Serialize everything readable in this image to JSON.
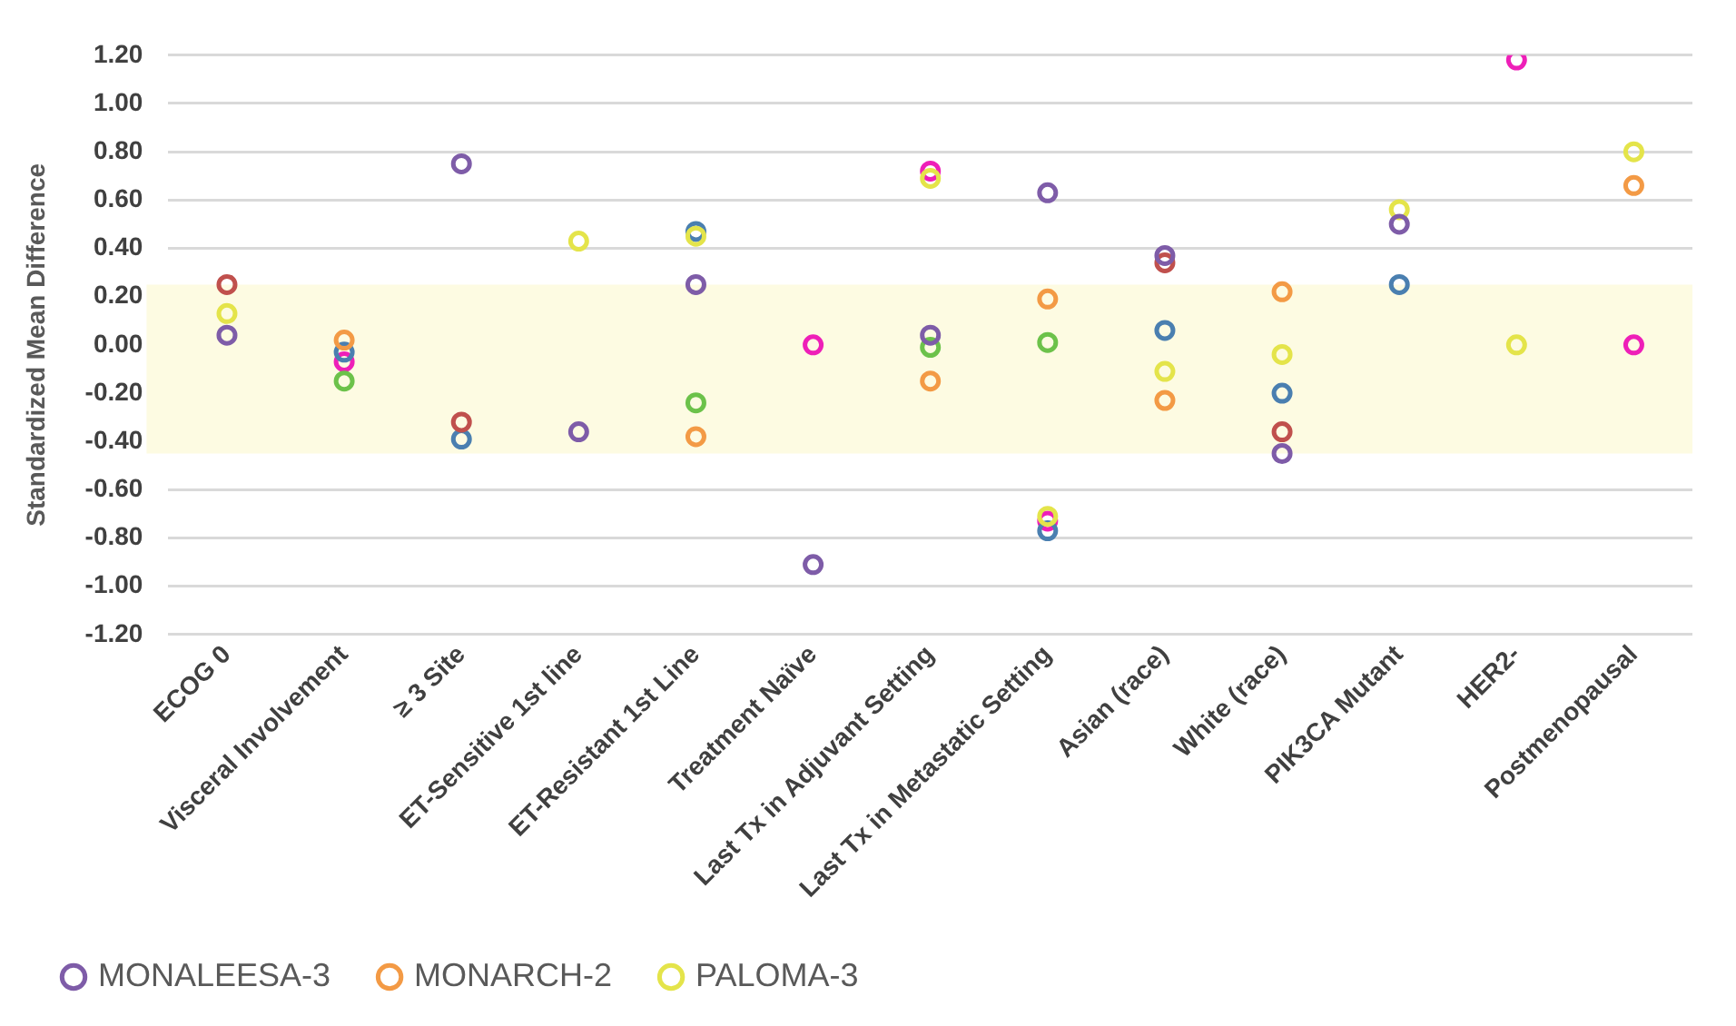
{
  "chart_data": {
    "type": "scatter",
    "ylabel": "Standardized Mean Difference",
    "categories": [
      "ECOG 0",
      "Visceral Involvement",
      "≥ 3 Site",
      "ET-Sensitive 1st line",
      "ET-Resistant 1st Line",
      "Treatment Naïve",
      "Last Tx in Adjuvant Setting",
      "Last Tx in Metastatic Setting",
      "Asian (race)",
      "White (race)",
      "PIK3CA Mutant",
      "HER2-",
      "Postmenopausal"
    ],
    "series": [
      {
        "name": "MONALEESA-3",
        "color": "#7e5ca8",
        "values": [
          0.04,
          null,
          0.75,
          -0.36,
          0.25,
          -0.91,
          0.04,
          0.63,
          0.37,
          -0.45,
          0.5,
          null,
          null
        ]
      },
      {
        "name": "MONARCH-2",
        "color": "#f39a45",
        "values": [
          null,
          0.02,
          null,
          null,
          -0.38,
          null,
          -0.15,
          0.19,
          -0.23,
          0.22,
          null,
          null,
          0.66
        ]
      },
      {
        "name": "PALOMA-3",
        "color": "#e4e44a",
        "values": [
          0.13,
          null,
          null,
          0.43,
          0.45,
          null,
          0.69,
          -0.71,
          -0.11,
          -0.04,
          0.56,
          0.0,
          0.8
        ]
      },
      {
        "color": "#c0504d",
        "values": [
          0.25,
          null,
          -0.32,
          null,
          null,
          null,
          null,
          null,
          0.34,
          -0.36,
          null,
          null,
          null
        ]
      },
      {
        "color": "#4a7fb0",
        "values": [
          null,
          -0.03,
          -0.39,
          null,
          0.47,
          null,
          null,
          -0.77,
          0.06,
          -0.2,
          0.25,
          null,
          null
        ]
      },
      {
        "color": "#6cc24a",
        "values": [
          null,
          -0.15,
          null,
          null,
          -0.24,
          null,
          -0.01,
          0.01,
          null,
          null,
          null,
          null,
          null
        ]
      },
      {
        "color": "#ee1fb8",
        "values": [
          null,
          -0.07,
          null,
          null,
          null,
          0.0,
          0.72,
          -0.73,
          null,
          null,
          null,
          1.18,
          0.0
        ]
      }
    ],
    "ylim": [
      -1.2,
      1.2
    ],
    "yticks": [
      {
        "value": -1.2,
        "label": "-1.20"
      },
      {
        "value": -1,
        "label": "-1.00"
      },
      {
        "value": -0.8,
        "label": "-0.80"
      },
      {
        "value": -0.6,
        "label": "-0.60"
      },
      {
        "value": -0.4,
        "label": "-0.40"
      },
      {
        "value": -0.2,
        "label": "-0.20"
      },
      {
        "value": 0,
        "label": "0.00"
      },
      {
        "value": 0.2,
        "label": "0.20"
      },
      {
        "value": 0.4,
        "label": "0.40"
      },
      {
        "value": 0.6,
        "label": "0.60"
      },
      {
        "value": 0.8,
        "label": "0.80"
      },
      {
        "value": 1,
        "label": "1.00"
      },
      {
        "value": 1.2,
        "label": "1.20"
      }
    ],
    "bands": [
      {
        "axis": "y",
        "from": -0.45,
        "to": 0.25,
        "color": "#fdfbe2"
      }
    ],
    "grid": "y",
    "legend": "bottom left",
    "marker": "circle"
  }
}
